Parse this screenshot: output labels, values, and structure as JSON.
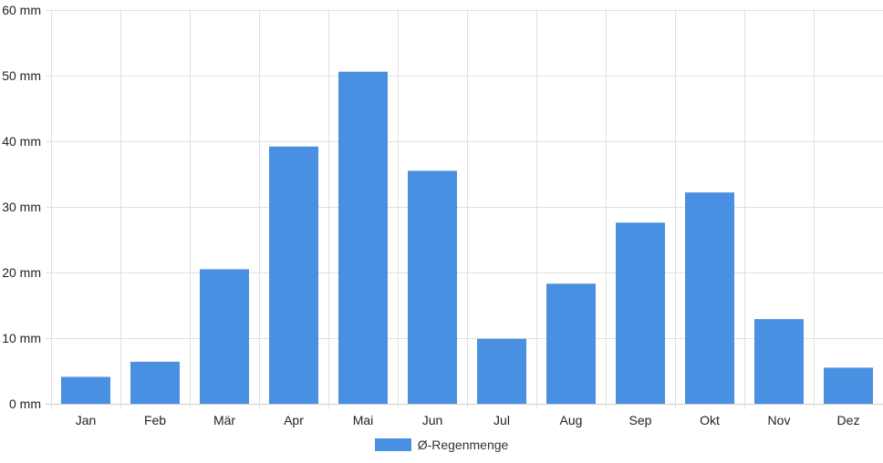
{
  "chart_data": {
    "type": "bar",
    "categories": [
      "Jan",
      "Feb",
      "Mär",
      "Apr",
      "Mai",
      "Jun",
      "Jul",
      "Aug",
      "Sep",
      "Okt",
      "Nov",
      "Dez"
    ],
    "series": [
      {
        "name": "Ø-Regenmenge",
        "values": [
          4.1,
          6.4,
          20.5,
          39.2,
          50.6,
          35.5,
          9.9,
          18.3,
          27.6,
          32.2,
          12.9,
          5.5
        ]
      }
    ],
    "ylim": [
      0,
      60
    ],
    "y_ticks": [
      "0 mm",
      "10 mm",
      "20 mm",
      "30 mm",
      "40 mm",
      "50 mm",
      "60 mm"
    ],
    "y_tick_values": [
      0,
      10,
      20,
      30,
      40,
      50,
      60
    ],
    "grid": true,
    "legend_position": "bottom-center",
    "colors": {
      "bar": "#4a90e2",
      "grid": "#e0e0e0",
      "axis": "#cccccc"
    }
  }
}
